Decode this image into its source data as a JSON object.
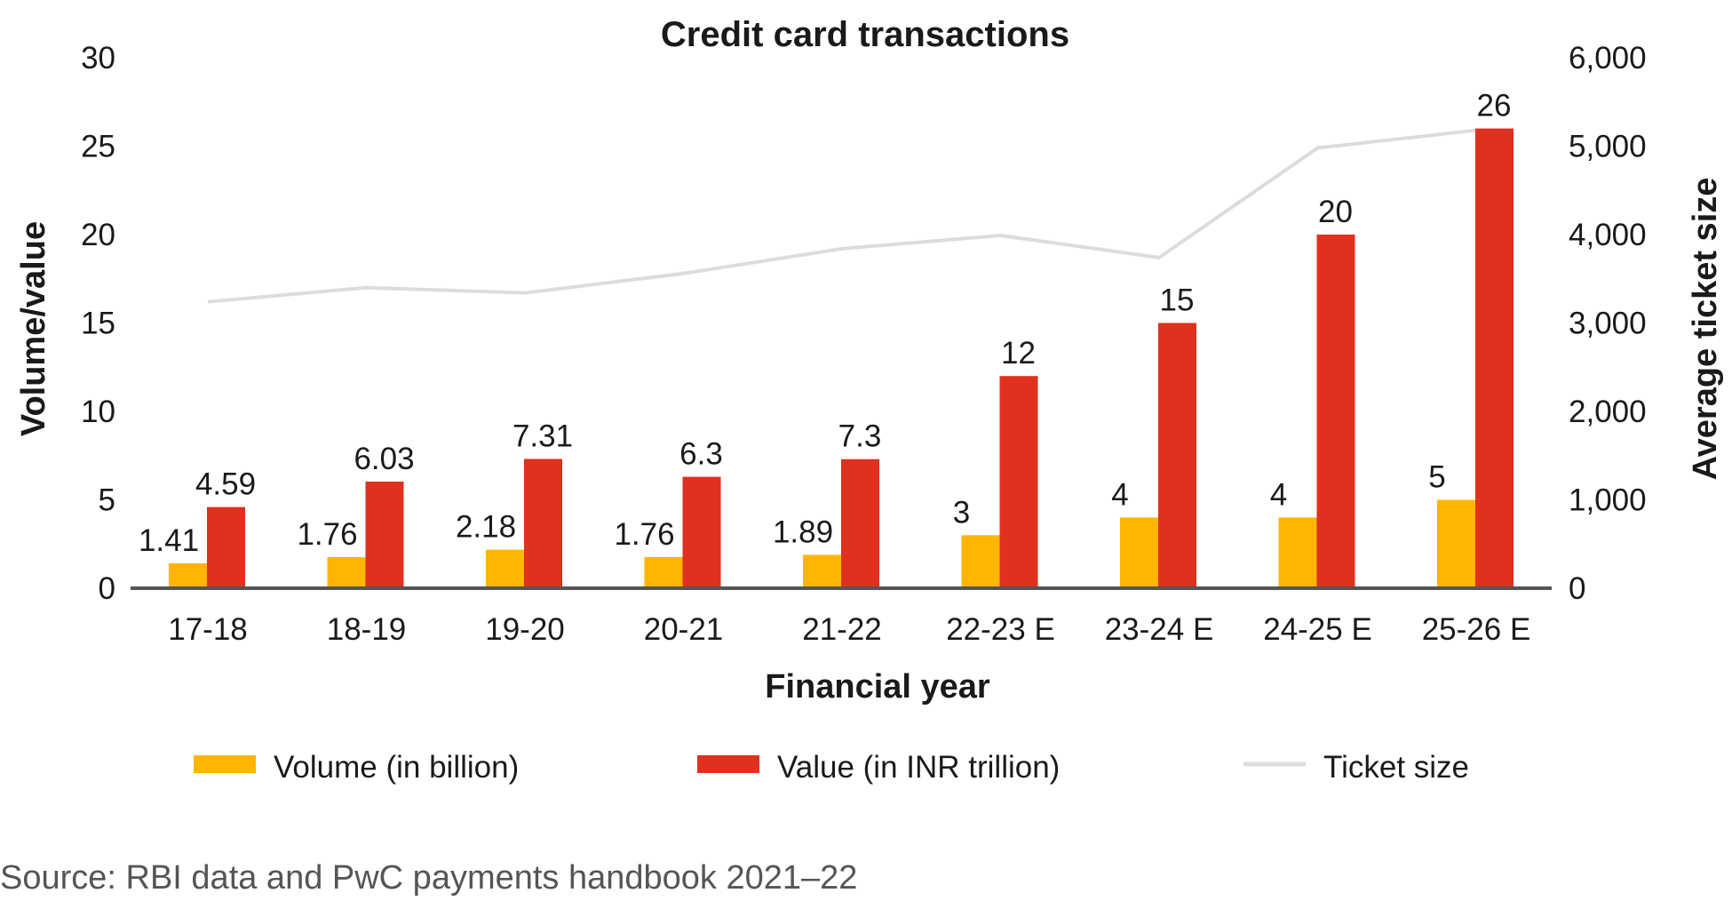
{
  "chart_data": {
    "type": "bar",
    "title": "Credit card transactions",
    "xlabel": "Financial year",
    "ylabel": "Volume/value",
    "y2label": "Average ticket size",
    "categories": [
      "17-18",
      "18-19",
      "19-20",
      "20-21",
      "21-22",
      "22-23 E",
      "23-24 E",
      "24-25 E",
      "25-26 E"
    ],
    "ylim": [
      0,
      30
    ],
    "yticks": [
      "0",
      "5",
      "10",
      "15",
      "20",
      "25",
      "30"
    ],
    "y2lim": [
      0,
      6000
    ],
    "y2ticks": [
      "0",
      "1,000",
      "2,000",
      "3,000",
      "4,000",
      "5,000",
      "6,000"
    ],
    "grid": false,
    "legend_position": "bottom",
    "series": [
      {
        "name": "Volume (in billion)",
        "type": "bar",
        "axis": "left",
        "color": "#FFB600",
        "values": [
          1.41,
          1.76,
          2.18,
          1.76,
          1.89,
          3,
          4,
          4,
          5
        ],
        "labels": [
          "1.41",
          "1.76",
          "2.18",
          "1.76",
          "1.89",
          "3",
          "4",
          "4",
          "5"
        ]
      },
      {
        "name": "Value (in INR trillion)",
        "type": "bar",
        "axis": "left",
        "color": "#E0301E",
        "values": [
          4.59,
          6.03,
          7.31,
          6.3,
          7.3,
          12,
          15,
          20,
          26
        ],
        "labels": [
          "4.59",
          "6.03",
          "7.31",
          "6.3",
          "7.3",
          "12",
          "15",
          "20",
          "26"
        ]
      },
      {
        "name": "Ticket size",
        "type": "line",
        "axis": "right",
        "color": "#DCDCDC",
        "values": [
          3240,
          3400,
          3340,
          3560,
          3840,
          3990,
          3740,
          4980,
          5180
        ]
      }
    ],
    "source": "Source: RBI data and PwC payments handbook 2021–22"
  }
}
